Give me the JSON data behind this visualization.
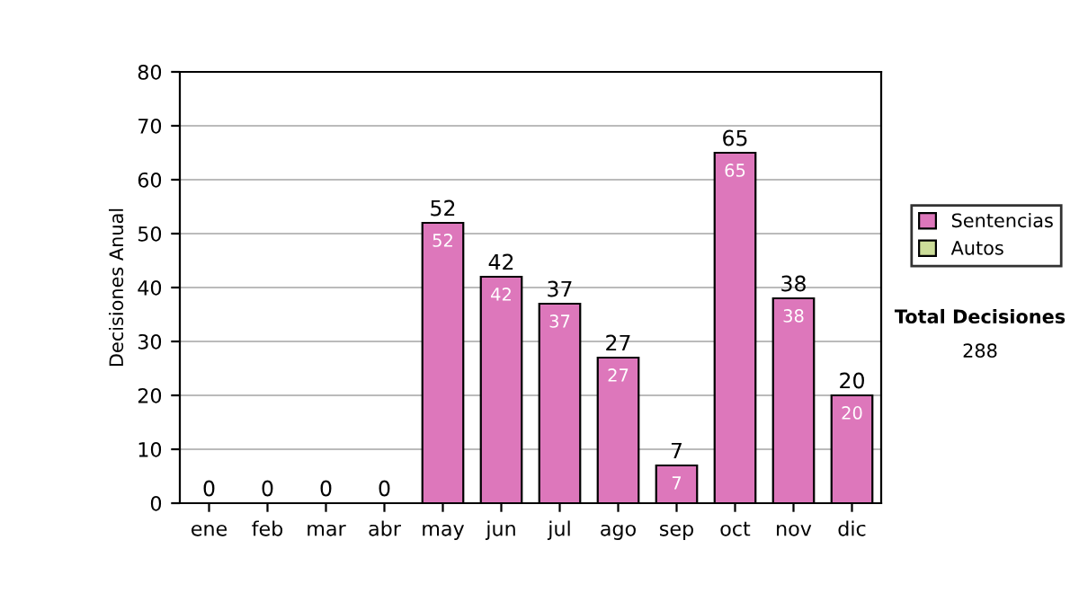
{
  "chart_data": {
    "type": "bar",
    "stacked": true,
    "ylabel": "Decisiones Anual",
    "categories": [
      "ene",
      "feb",
      "mar",
      "abr",
      "may",
      "jun",
      "jul",
      "ago",
      "sep",
      "oct",
      "nov",
      "dic"
    ],
    "series": [
      {
        "name": "Sentencias",
        "color": "#dd77bb",
        "values": [
          0,
          0,
          0,
          0,
          52,
          42,
          37,
          27,
          7,
          65,
          38,
          20
        ],
        "value_labels": [
          null,
          null,
          null,
          null,
          "52",
          "42",
          "37",
          "27",
          "7",
          "65",
          "38",
          "20"
        ]
      },
      {
        "name": "Autos",
        "color": "#ccdd99",
        "values": [
          0,
          0,
          0,
          0,
          0,
          0,
          0,
          0,
          0,
          0,
          0,
          0
        ]
      }
    ],
    "totals": [
      "0",
      "0",
      "0",
      "0",
      "52",
      "42",
      "37",
      "27",
      "7",
      "65",
      "38",
      "20"
    ],
    "ylim": [
      0,
      80
    ],
    "yticks": [
      0,
      10,
      20,
      30,
      40,
      50,
      60,
      70,
      80
    ],
    "grid": "y",
    "legend": "right",
    "annotations": [
      "Total Decisiones",
      "288"
    ]
  }
}
